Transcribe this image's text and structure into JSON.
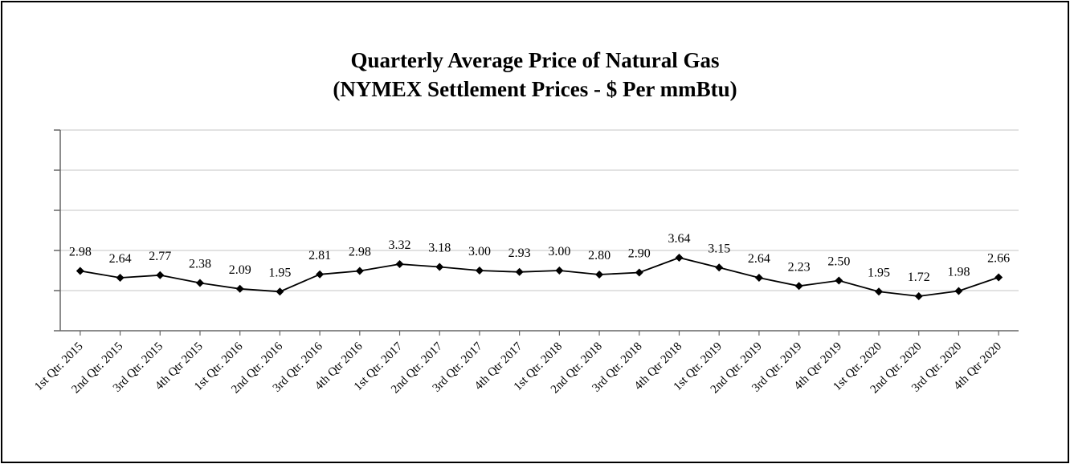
{
  "chart_data": {
    "type": "line",
    "title_line1": "Quarterly Average Price of Natural Gas",
    "title_line2": "(NYMEX Settlement Prices - $ Per mmBtu)",
    "categories": [
      "1st Qtr. 2015",
      "2nd Qtr. 2015",
      "3rd Qtr. 2015",
      "4th Qtr 2015",
      "1st Qtr. 2016",
      "2nd Qtr. 2016",
      "3rd Qtr. 2016",
      "4th Qtr 2016",
      "1st Qtr. 2017",
      "2nd Qtr. 2017",
      "3rd Qtr. 2017",
      "4th Qtr 2017",
      "1st Qtr. 2018",
      "2nd Qtr. 2018",
      "3rd Qtr. 2018",
      "4th Qtr 2018",
      "1st Qtr. 2019",
      "2nd Qtr. 2019",
      "3rd Qtr. 2019",
      "4th Qtr 2019",
      "1st Qtr. 2020",
      "2nd Qtr. 2020",
      "3rd Qtr. 2020",
      "4th Qtr 2020"
    ],
    "values": [
      2.98,
      2.64,
      2.77,
      2.38,
      2.09,
      1.95,
      2.81,
      2.98,
      3.32,
      3.18,
      3.0,
      2.93,
      3.0,
      2.8,
      2.9,
      3.64,
      3.15,
      2.64,
      2.23,
      2.5,
      1.95,
      1.72,
      1.98,
      2.66
    ],
    "ylim": [
      0,
      10
    ],
    "grid": true,
    "y_tick_labels_shown": false,
    "line_color": "#000000",
    "marker": "diamond",
    "grid_color": "#d9d9d9"
  }
}
